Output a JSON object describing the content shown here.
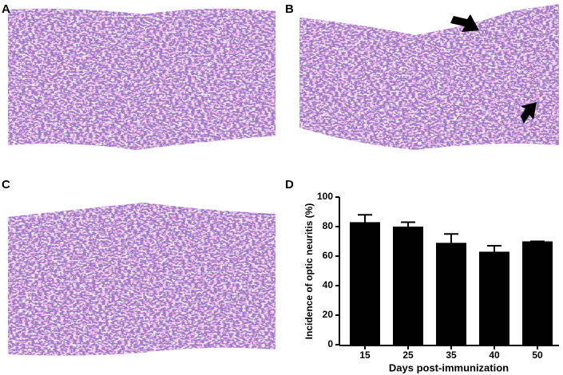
{
  "panel_labels": [
    "A",
    "B",
    "C",
    "D"
  ],
  "chart_data": {
    "type": "bar",
    "ylabel": "Incidence of optic neuritis (%)",
    "xlabel": "Days post-immunization",
    "categories": [
      "15",
      "25",
      "35",
      "40",
      "50"
    ],
    "values": [
      83,
      80,
      69,
      63,
      70
    ],
    "errors": [
      5,
      3,
      6,
      4,
      0
    ],
    "color": "#000000",
    "ylim": [
      0,
      100
    ],
    "yticks": [
      0,
      20,
      40,
      60,
      80,
      100
    ]
  }
}
